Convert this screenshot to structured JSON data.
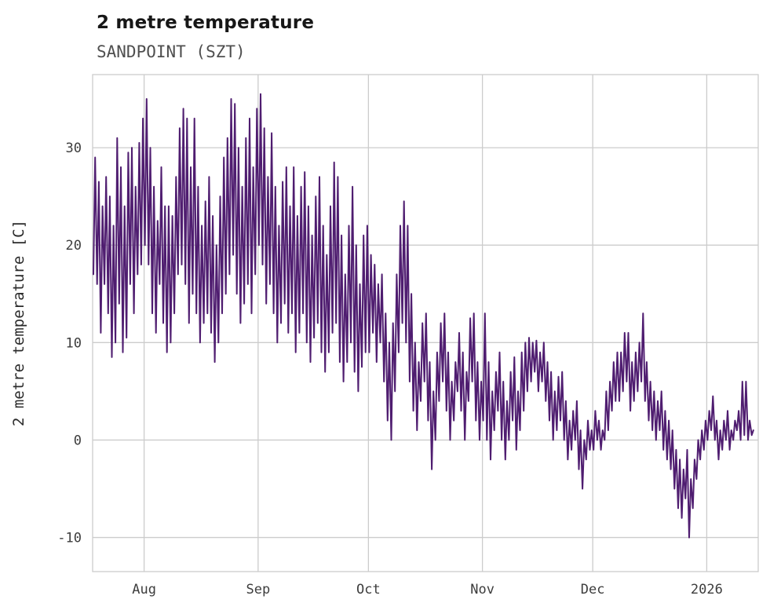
{
  "header": {
    "title": "2 metre temperature",
    "subtitle": "SANDPOINT (SZT)"
  },
  "chart_data": {
    "type": "line",
    "title": "2 metre temperature",
    "subtitle": "SANDPOINT (SZT)",
    "xlabel": "",
    "ylabel": "2 metre temperature [C]",
    "units": "C",
    "grid": true,
    "legend": "none",
    "xlim": [
      0,
      181
    ],
    "ylim": [
      -13.5,
      37.5
    ],
    "y_ticks": [
      -10,
      0,
      10,
      20,
      30
    ],
    "x_ticks": [
      {
        "label": "Aug",
        "day": 14
      },
      {
        "label": "Sep",
        "day": 45
      },
      {
        "label": "Oct",
        "day": 75
      },
      {
        "label": "Nov",
        "day": 106
      },
      {
        "label": "Dec",
        "day": 136
      },
      {
        "label": "2026",
        "day": 167
      }
    ],
    "line_color": "#4f1d70",
    "grid_color": "#cccccc",
    "tick_color": "#3d3d3d",
    "axis_label_color": "#2b2b2b",
    "title_color": "#171717",
    "subtitle_color": "#4f4f4f",
    "series_name": "2 metre temperature",
    "daily_min_max": [
      [
        17,
        29
      ],
      [
        16,
        26.5
      ],
      [
        11,
        24
      ],
      [
        16,
        27
      ],
      [
        13,
        25
      ],
      [
        8.5,
        22
      ],
      [
        10,
        31
      ],
      [
        14,
        28
      ],
      [
        9,
        24
      ],
      [
        10.5,
        29.5
      ],
      [
        16,
        30
      ],
      [
        13,
        26
      ],
      [
        17,
        30.5
      ],
      [
        18,
        33
      ],
      [
        20,
        35
      ],
      [
        18,
        30
      ],
      [
        13,
        26
      ],
      [
        11,
        22.5
      ],
      [
        16,
        28
      ],
      [
        12,
        24
      ],
      [
        9,
        24
      ],
      [
        10,
        23
      ],
      [
        13,
        27
      ],
      [
        17,
        32
      ],
      [
        18,
        34
      ],
      [
        16,
        33
      ],
      [
        12,
        28
      ],
      [
        15,
        33
      ],
      [
        13,
        26
      ],
      [
        10,
        22
      ],
      [
        12,
        24.5
      ],
      [
        13,
        27
      ],
      [
        11,
        23
      ],
      [
        8,
        20
      ],
      [
        10,
        25
      ],
      [
        13,
        29
      ],
      [
        15,
        31
      ],
      [
        17,
        35
      ],
      [
        19,
        34.5
      ],
      [
        15,
        30
      ],
      [
        12,
        26
      ],
      [
        14,
        31
      ],
      [
        16,
        33
      ],
      [
        13,
        28
      ],
      [
        17,
        34
      ],
      [
        20,
        35.5
      ],
      [
        18,
        32
      ],
      [
        14,
        27
      ],
      [
        16,
        31.5
      ],
      [
        13,
        26
      ],
      [
        10,
        22
      ],
      [
        12,
        26.5
      ],
      [
        14,
        28
      ],
      [
        11,
        24
      ],
      [
        13,
        28
      ],
      [
        9,
        23
      ],
      [
        11,
        26
      ],
      [
        13,
        27.5
      ],
      [
        10,
        24
      ],
      [
        8,
        21
      ],
      [
        10.5,
        25
      ],
      [
        12,
        27
      ],
      [
        9,
        22
      ],
      [
        7,
        19
      ],
      [
        9,
        24
      ],
      [
        11,
        28.5
      ],
      [
        12,
        27
      ],
      [
        8,
        21
      ],
      [
        6,
        17
      ],
      [
        8,
        22
      ],
      [
        10,
        26
      ],
      [
        7,
        20
      ],
      [
        5,
        16
      ],
      [
        7.5,
        21
      ],
      [
        9,
        22
      ],
      [
        9,
        19
      ],
      [
        11,
        18
      ],
      [
        8,
        16
      ],
      [
        10,
        17
      ],
      [
        6,
        13
      ],
      [
        2,
        10
      ],
      [
        0,
        12
      ],
      [
        5,
        17
      ],
      [
        9,
        22
      ],
      [
        12,
        24.5
      ],
      [
        10,
        22
      ],
      [
        6,
        15
      ],
      [
        3,
        10
      ],
      [
        1,
        8
      ],
      [
        4,
        12
      ],
      [
        6,
        13
      ],
      [
        2,
        8
      ],
      [
        -3,
        5
      ],
      [
        0,
        9
      ],
      [
        4,
        12
      ],
      [
        6,
        13
      ],
      [
        3,
        9
      ],
      [
        0,
        6
      ],
      [
        2,
        8
      ],
      [
        5,
        11
      ],
      [
        3,
        9
      ],
      [
        0,
        7
      ],
      [
        4,
        12.5
      ],
      [
        6,
        13
      ],
      [
        2,
        8
      ],
      [
        0,
        6
      ],
      [
        2,
        13
      ],
      [
        0,
        8
      ],
      [
        -2,
        5
      ],
      [
        1,
        7
      ],
      [
        3,
        9
      ],
      [
        0,
        6
      ],
      [
        -2,
        4
      ],
      [
        0,
        7
      ],
      [
        2,
        8.5
      ],
      [
        -1,
        5
      ],
      [
        1,
        9
      ],
      [
        3,
        10
      ],
      [
        5,
        10.5
      ],
      [
        6,
        10
      ],
      [
        7,
        10.2
      ],
      [
        5,
        9
      ],
      [
        6,
        10
      ],
      [
        4,
        8
      ],
      [
        2,
        7
      ],
      [
        0,
        5
      ],
      [
        1,
        6.5
      ],
      [
        2,
        7
      ],
      [
        0,
        4
      ],
      [
        -2,
        2
      ],
      [
        -1,
        3
      ],
      [
        0,
        4
      ],
      [
        -3,
        1
      ],
      [
        -5,
        0
      ],
      [
        -2,
        2
      ],
      [
        -1,
        1
      ],
      [
        -1,
        3
      ],
      [
        0,
        2
      ],
      [
        -1,
        1
      ],
      [
        0,
        5
      ],
      [
        1,
        6
      ],
      [
        3,
        8
      ],
      [
        4,
        9
      ],
      [
        4,
        9
      ],
      [
        5,
        11
      ],
      [
        6,
        11
      ],
      [
        3,
        8
      ],
      [
        4,
        9
      ],
      [
        5,
        10
      ],
      [
        6,
        13
      ],
      [
        4,
        8
      ],
      [
        2,
        6
      ],
      [
        1,
        5
      ],
      [
        0,
        4
      ],
      [
        1,
        5
      ],
      [
        -1,
        3
      ],
      [
        -2,
        2
      ],
      [
        -3,
        1
      ],
      [
        -5,
        -1
      ],
      [
        -7,
        -2
      ],
      [
        -8,
        -3
      ],
      [
        -6,
        -1
      ],
      [
        -10,
        -4
      ],
      [
        -7,
        -2
      ],
      [
        -4,
        0
      ],
      [
        -2,
        1
      ],
      [
        -1,
        2
      ],
      [
        0,
        3
      ],
      [
        1,
        4.5
      ],
      [
        0,
        2
      ],
      [
        -2,
        1
      ],
      [
        -1,
        2
      ],
      [
        0,
        3
      ],
      [
        -1,
        1
      ],
      [
        0,
        2
      ],
      [
        1,
        3
      ],
      [
        0,
        6
      ],
      [
        0.5,
        6
      ],
      [
        0,
        2
      ],
      [
        0.5,
        1
      ]
    ]
  }
}
